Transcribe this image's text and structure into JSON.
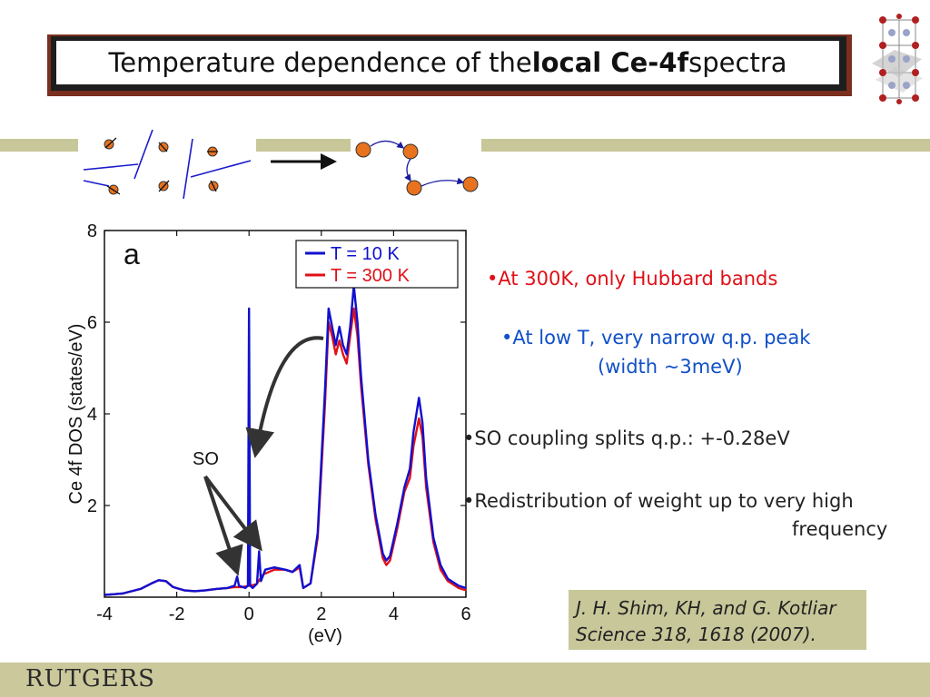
{
  "title": {
    "pre": "Temperature dependence of the ",
    "bold": "local Ce-4f",
    "post": " spectra"
  },
  "bullets": {
    "b1": "•At 300K, only Hubbard bands",
    "b2_line1": "•At low T, very narrow q.p. peak",
    "b2_line2": "(width ~3meV)",
    "b3": "•SO coupling splits q.p.: +-0.28eV",
    "b4_line1": "•Redistribution of weight up to very high",
    "b4_line2": "frequency"
  },
  "reference": {
    "line1": "J. H. Shim, KH, and G. Kotliar",
    "line2": "Science 318, 1618 (2007)."
  },
  "logo": "RUTGERS",
  "colors": {
    "t10": "#1010d0",
    "t300": "#e01018",
    "red_text": "#e01018",
    "blue_text": "#1050c8",
    "accent_band": "#c8c79a",
    "title_border": "#7a2f1f"
  },
  "chart_data": {
    "type": "line",
    "panel_label": "a",
    "xlabel": "(eV)",
    "ylabel": "Ce 4f DOS (states/eV)",
    "xlim": [
      -4,
      6
    ],
    "ylim": [
      0,
      8
    ],
    "xticks": [
      -4,
      -2,
      0,
      2,
      4,
      6
    ],
    "yticks": [
      2,
      4,
      6,
      8
    ],
    "annotation": "SO",
    "legend_position": "top-right",
    "series": [
      {
        "name": "T = 10 K",
        "color": "#1010d0",
        "points": [
          [
            -4,
            0.05
          ],
          [
            -3.5,
            0.08
          ],
          [
            -3,
            0.18
          ],
          [
            -2.7,
            0.3
          ],
          [
            -2.5,
            0.37
          ],
          [
            -2.3,
            0.35
          ],
          [
            -2.1,
            0.22
          ],
          [
            -1.8,
            0.15
          ],
          [
            -1.5,
            0.13
          ],
          [
            -1.2,
            0.15
          ],
          [
            -0.9,
            0.18
          ],
          [
            -0.6,
            0.2
          ],
          [
            -0.4,
            0.25
          ],
          [
            -0.33,
            0.45
          ],
          [
            -0.28,
            0.25
          ],
          [
            -0.1,
            0.2
          ],
          [
            -0.03,
            0.25
          ],
          [
            0,
            6.3
          ],
          [
            0.03,
            0.25
          ],
          [
            0.1,
            0.2
          ],
          [
            0.22,
            0.3
          ],
          [
            0.28,
            1.0
          ],
          [
            0.33,
            0.35
          ],
          [
            0.45,
            0.6
          ],
          [
            0.7,
            0.65
          ],
          [
            1.0,
            0.6
          ],
          [
            1.2,
            0.55
          ],
          [
            1.4,
            0.7
          ],
          [
            1.5,
            0.2
          ],
          [
            1.7,
            0.3
          ],
          [
            1.9,
            1.4
          ],
          [
            2.1,
            4.5
          ],
          [
            2.2,
            6.3
          ],
          [
            2.3,
            5.9
          ],
          [
            2.4,
            5.5
          ],
          [
            2.5,
            5.9
          ],
          [
            2.6,
            5.5
          ],
          [
            2.7,
            5.3
          ],
          [
            2.8,
            5.9
          ],
          [
            2.9,
            6.8
          ],
          [
            3.0,
            6.0
          ],
          [
            3.1,
            4.8
          ],
          [
            3.3,
            3.0
          ],
          [
            3.5,
            1.8
          ],
          [
            3.7,
            0.95
          ],
          [
            3.8,
            0.8
          ],
          [
            3.9,
            0.9
          ],
          [
            4.1,
            1.6
          ],
          [
            4.3,
            2.4
          ],
          [
            4.45,
            2.8
          ],
          [
            4.55,
            3.6
          ],
          [
            4.7,
            4.35
          ],
          [
            4.8,
            3.8
          ],
          [
            4.9,
            2.6
          ],
          [
            5.1,
            1.3
          ],
          [
            5.3,
            0.7
          ],
          [
            5.5,
            0.4
          ],
          [
            5.8,
            0.25
          ],
          [
            6,
            0.2
          ]
        ]
      },
      {
        "name": "T = 300 K",
        "color": "#e01018",
        "points": [
          [
            -4,
            0.05
          ],
          [
            -3.5,
            0.08
          ],
          [
            -3,
            0.18
          ],
          [
            -2.7,
            0.3
          ],
          [
            -2.5,
            0.37
          ],
          [
            -2.3,
            0.35
          ],
          [
            -2.1,
            0.22
          ],
          [
            -1.8,
            0.15
          ],
          [
            -1.5,
            0.13
          ],
          [
            -1.2,
            0.15
          ],
          [
            -0.9,
            0.18
          ],
          [
            -0.6,
            0.2
          ],
          [
            -0.4,
            0.22
          ],
          [
            -0.2,
            0.22
          ],
          [
            0,
            0.25
          ],
          [
            0.2,
            0.28
          ],
          [
            0.4,
            0.5
          ],
          [
            0.7,
            0.6
          ],
          [
            1.0,
            0.6
          ],
          [
            1.2,
            0.55
          ],
          [
            1.4,
            0.65
          ],
          [
            1.5,
            0.2
          ],
          [
            1.7,
            0.3
          ],
          [
            1.9,
            1.3
          ],
          [
            2.1,
            4.2
          ],
          [
            2.2,
            6.0
          ],
          [
            2.3,
            5.7
          ],
          [
            2.4,
            5.3
          ],
          [
            2.5,
            5.6
          ],
          [
            2.6,
            5.3
          ],
          [
            2.7,
            5.1
          ],
          [
            2.8,
            5.7
          ],
          [
            2.9,
            6.3
          ],
          [
            3.0,
            5.7
          ],
          [
            3.1,
            4.6
          ],
          [
            3.3,
            2.9
          ],
          [
            3.5,
            1.7
          ],
          [
            3.7,
            0.85
          ],
          [
            3.8,
            0.7
          ],
          [
            3.9,
            0.8
          ],
          [
            4.1,
            1.5
          ],
          [
            4.3,
            2.3
          ],
          [
            4.45,
            2.6
          ],
          [
            4.55,
            3.3
          ],
          [
            4.7,
            3.9
          ],
          [
            4.8,
            3.5
          ],
          [
            4.9,
            2.4
          ],
          [
            5.1,
            1.2
          ],
          [
            5.3,
            0.6
          ],
          [
            5.5,
            0.35
          ],
          [
            5.8,
            0.2
          ],
          [
            6,
            0.15
          ]
        ]
      }
    ]
  }
}
